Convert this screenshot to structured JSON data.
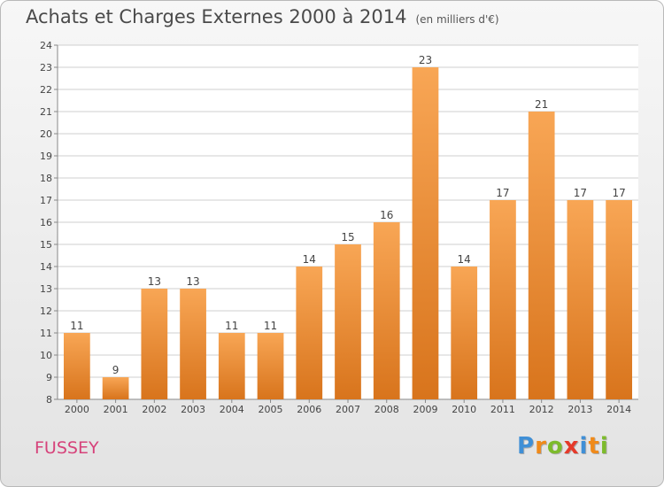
{
  "title": "Achats et Charges Externes 2000 à 2014",
  "subtitle": "(en milliers d'€)",
  "location": "FUSSEY",
  "logo": {
    "letters": [
      "P",
      "r",
      "o",
      "x",
      "i",
      "t",
      "i"
    ],
    "colors": [
      "#3f8fd6",
      "#f08a1a",
      "#7dbb2c",
      "#e53a2a",
      "#3f8fd6",
      "#f08a1a",
      "#7dbb2c"
    ]
  },
  "colors": {
    "bar_top": "#f8a655",
    "bar_bottom": "#d8741c",
    "grid": "#cfcfcf",
    "axis_text": "#444444"
  },
  "chart_data": {
    "type": "bar",
    "categories": [
      "2000",
      "2001",
      "2002",
      "2003",
      "2004",
      "2005",
      "2006",
      "2007",
      "2008",
      "2009",
      "2010",
      "2011",
      "2012",
      "2013",
      "2014"
    ],
    "values": [
      11,
      9,
      13,
      13,
      11,
      11,
      14,
      15,
      16,
      23,
      14,
      17,
      21,
      17,
      17
    ],
    "ylim": [
      8,
      24
    ],
    "yticks": [
      8,
      9,
      10,
      11,
      12,
      13,
      14,
      15,
      16,
      17,
      18,
      19,
      20,
      21,
      22,
      23,
      24
    ],
    "grid": true,
    "data_labels": true
  }
}
